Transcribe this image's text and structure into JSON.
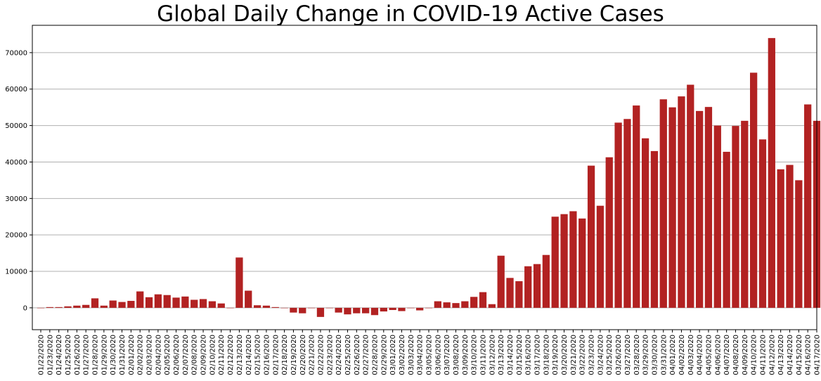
{
  "chart_data": {
    "type": "bar",
    "title": "Global Daily Change in COVID-19 Active Cases",
    "xlabel": "",
    "ylabel": "",
    "ylim": [
      -6000,
      77500
    ],
    "yticks": [
      0,
      10000,
      20000,
      30000,
      40000,
      50000,
      60000,
      70000
    ],
    "grid": "horizontal",
    "bar_color": "#b22222",
    "categories": [
      "01/22/2020",
      "01/23/2020",
      "01/24/2020",
      "01/25/2020",
      "01/26/2020",
      "01/27/2020",
      "01/28/2020",
      "01/29/2020",
      "01/30/2020",
      "01/31/2020",
      "02/01/2020",
      "02/02/2020",
      "02/03/2020",
      "02/04/2020",
      "02/05/2020",
      "02/06/2020",
      "02/07/2020",
      "02/08/2020",
      "02/09/2020",
      "02/10/2020",
      "02/11/2020",
      "02/12/2020",
      "02/13/2020",
      "02/14/2020",
      "02/15/2020",
      "02/16/2020",
      "02/17/2020",
      "02/18/2020",
      "02/19/2020",
      "02/20/2020",
      "02/21/2020",
      "02/22/2020",
      "02/23/2020",
      "02/24/2020",
      "02/25/2020",
      "02/26/2020",
      "02/27/2020",
      "02/28/2020",
      "02/29/2020",
      "03/01/2020",
      "03/02/2020",
      "03/03/2020",
      "03/04/2020",
      "03/05/2020",
      "03/06/2020",
      "03/07/2020",
      "03/08/2020",
      "03/09/2020",
      "03/10/2020",
      "03/11/2020",
      "03/12/2020",
      "03/13/2020",
      "03/14/2020",
      "03/15/2020",
      "03/16/2020",
      "03/17/2020",
      "03/18/2020",
      "03/19/2020",
      "03/20/2020",
      "03/21/2020",
      "03/22/2020",
      "03/23/2020",
      "03/24/2020",
      "03/25/2020",
      "03/26/2020",
      "03/27/2020",
      "03/28/2020",
      "03/29/2020",
      "03/30/2020",
      "03/31/2020",
      "04/01/2020",
      "04/02/2020",
      "04/03/2020",
      "04/04/2020",
      "04/05/2020",
      "04/06/2020",
      "04/07/2020",
      "04/08/2020",
      "04/09/2020",
      "04/10/2020",
      "04/11/2020",
      "04/12/2020",
      "04/13/2020",
      "04/14/2020",
      "04/15/2020",
      "04/16/2020",
      "04/17/2020"
    ],
    "values": [
      0,
      200,
      200,
      400,
      600,
      800,
      2600,
      600,
      2000,
      1600,
      1900,
      4500,
      2900,
      3700,
      3500,
      2800,
      3100,
      2200,
      2400,
      1800,
      1200,
      0,
      13800,
      4700,
      700,
      600,
      200,
      0,
      -1300,
      -1500,
      0,
      -2500,
      0,
      -1300,
      -1800,
      -1500,
      -1500,
      -2000,
      -1000,
      -600,
      -900,
      0,
      -700,
      0,
      1800,
      1500,
      1300,
      1800,
      3000,
      4300,
      1000,
      14300,
      8200,
      7300,
      11400,
      12000,
      14500,
      25000,
      25700,
      26500,
      24500,
      39000,
      28000,
      41300,
      50800,
      51800,
      55500,
      46500,
      43000,
      57200,
      55000,
      58000,
      61200,
      54000,
      55100,
      50000,
      42800,
      49900,
      51300,
      64500,
      46200,
      74000,
      38000,
      39200,
      35000,
      55800,
      51300
    ]
  }
}
